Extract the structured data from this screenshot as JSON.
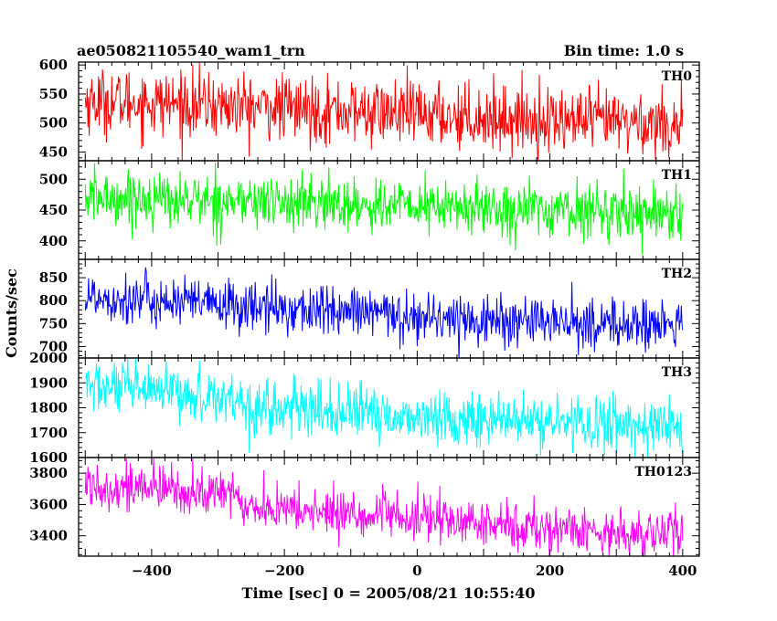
{
  "chart_data": {
    "type": "line",
    "title": "ae050821105540_wam1_trn",
    "subtitle": "Bin time: 1.0 s",
    "xlabel": "Time [sec] 0 = 2005/08/21 10:55:40",
    "ylabel": "Counts/sec",
    "xlim": [
      -510,
      425
    ],
    "x_ticks": [
      -400,
      -200,
      0,
      200,
      400
    ],
    "x_range": [
      -500,
      400
    ],
    "bin_time": 1.0,
    "grid": false,
    "legend": "none",
    "panels": [
      {
        "name": "TH0",
        "color": "#ff0000",
        "ylim": [
          435,
          605
        ],
        "y_ticks": [
          450,
          500,
          550,
          600
        ],
        "trend_x": [
          -500,
          -400,
          -300,
          -200,
          -100,
          0,
          100,
          200,
          300,
          400
        ],
        "trend_y": [
          538,
          535,
          530,
          525,
          520,
          515,
          510,
          505,
          502,
          498
        ],
        "noise": 28
      },
      {
        "name": "TH1",
        "color": "#00ff00",
        "ylim": [
          370,
          530
        ],
        "y_ticks": [
          400,
          450,
          500
        ],
        "trend_x": [
          -500,
          -400,
          -300,
          -200,
          -100,
          0,
          100,
          200,
          300,
          400
        ],
        "trend_y": [
          470,
          468,
          465,
          462,
          459,
          456,
          453,
          450,
          448,
          447
        ],
        "noise": 22
      },
      {
        "name": "TH2",
        "color": "#0000ff",
        "ylim": [
          675,
          890
        ],
        "y_ticks": [
          700,
          750,
          800,
          850
        ],
        "trend_x": [
          -500,
          -400,
          -300,
          -200,
          -100,
          0,
          100,
          200,
          300,
          400
        ],
        "trend_y": [
          810,
          800,
          790,
          782,
          775,
          765,
          758,
          752,
          748,
          745
        ],
        "noise": 28
      },
      {
        "name": "TH3",
        "color": "#00ffff",
        "ylim": [
          1600,
          2000
        ],
        "y_ticks": [
          1600,
          1700,
          1800,
          1900,
          2000
        ],
        "trend_x": [
          -500,
          -400,
          -300,
          -270,
          -260,
          -200,
          -100,
          0,
          100,
          200,
          300,
          400
        ],
        "trend_y": [
          1890,
          1860,
          1845,
          1840,
          1805,
          1795,
          1780,
          1760,
          1750,
          1740,
          1735,
          1725
        ],
        "noise": 55
      },
      {
        "name": "TH0123",
        "color": "#ff00ff",
        "ylim": [
          3270,
          3900
        ],
        "y_ticks": [
          3400,
          3600,
          3800
        ],
        "trend_x": [
          -500,
          -400,
          -300,
          -270,
          -260,
          -200,
          -100,
          0,
          100,
          200,
          300,
          400
        ],
        "trend_y": [
          3730,
          3700,
          3670,
          3660,
          3590,
          3565,
          3540,
          3510,
          3475,
          3445,
          3425,
          3410
        ],
        "noise": 75
      }
    ]
  }
}
